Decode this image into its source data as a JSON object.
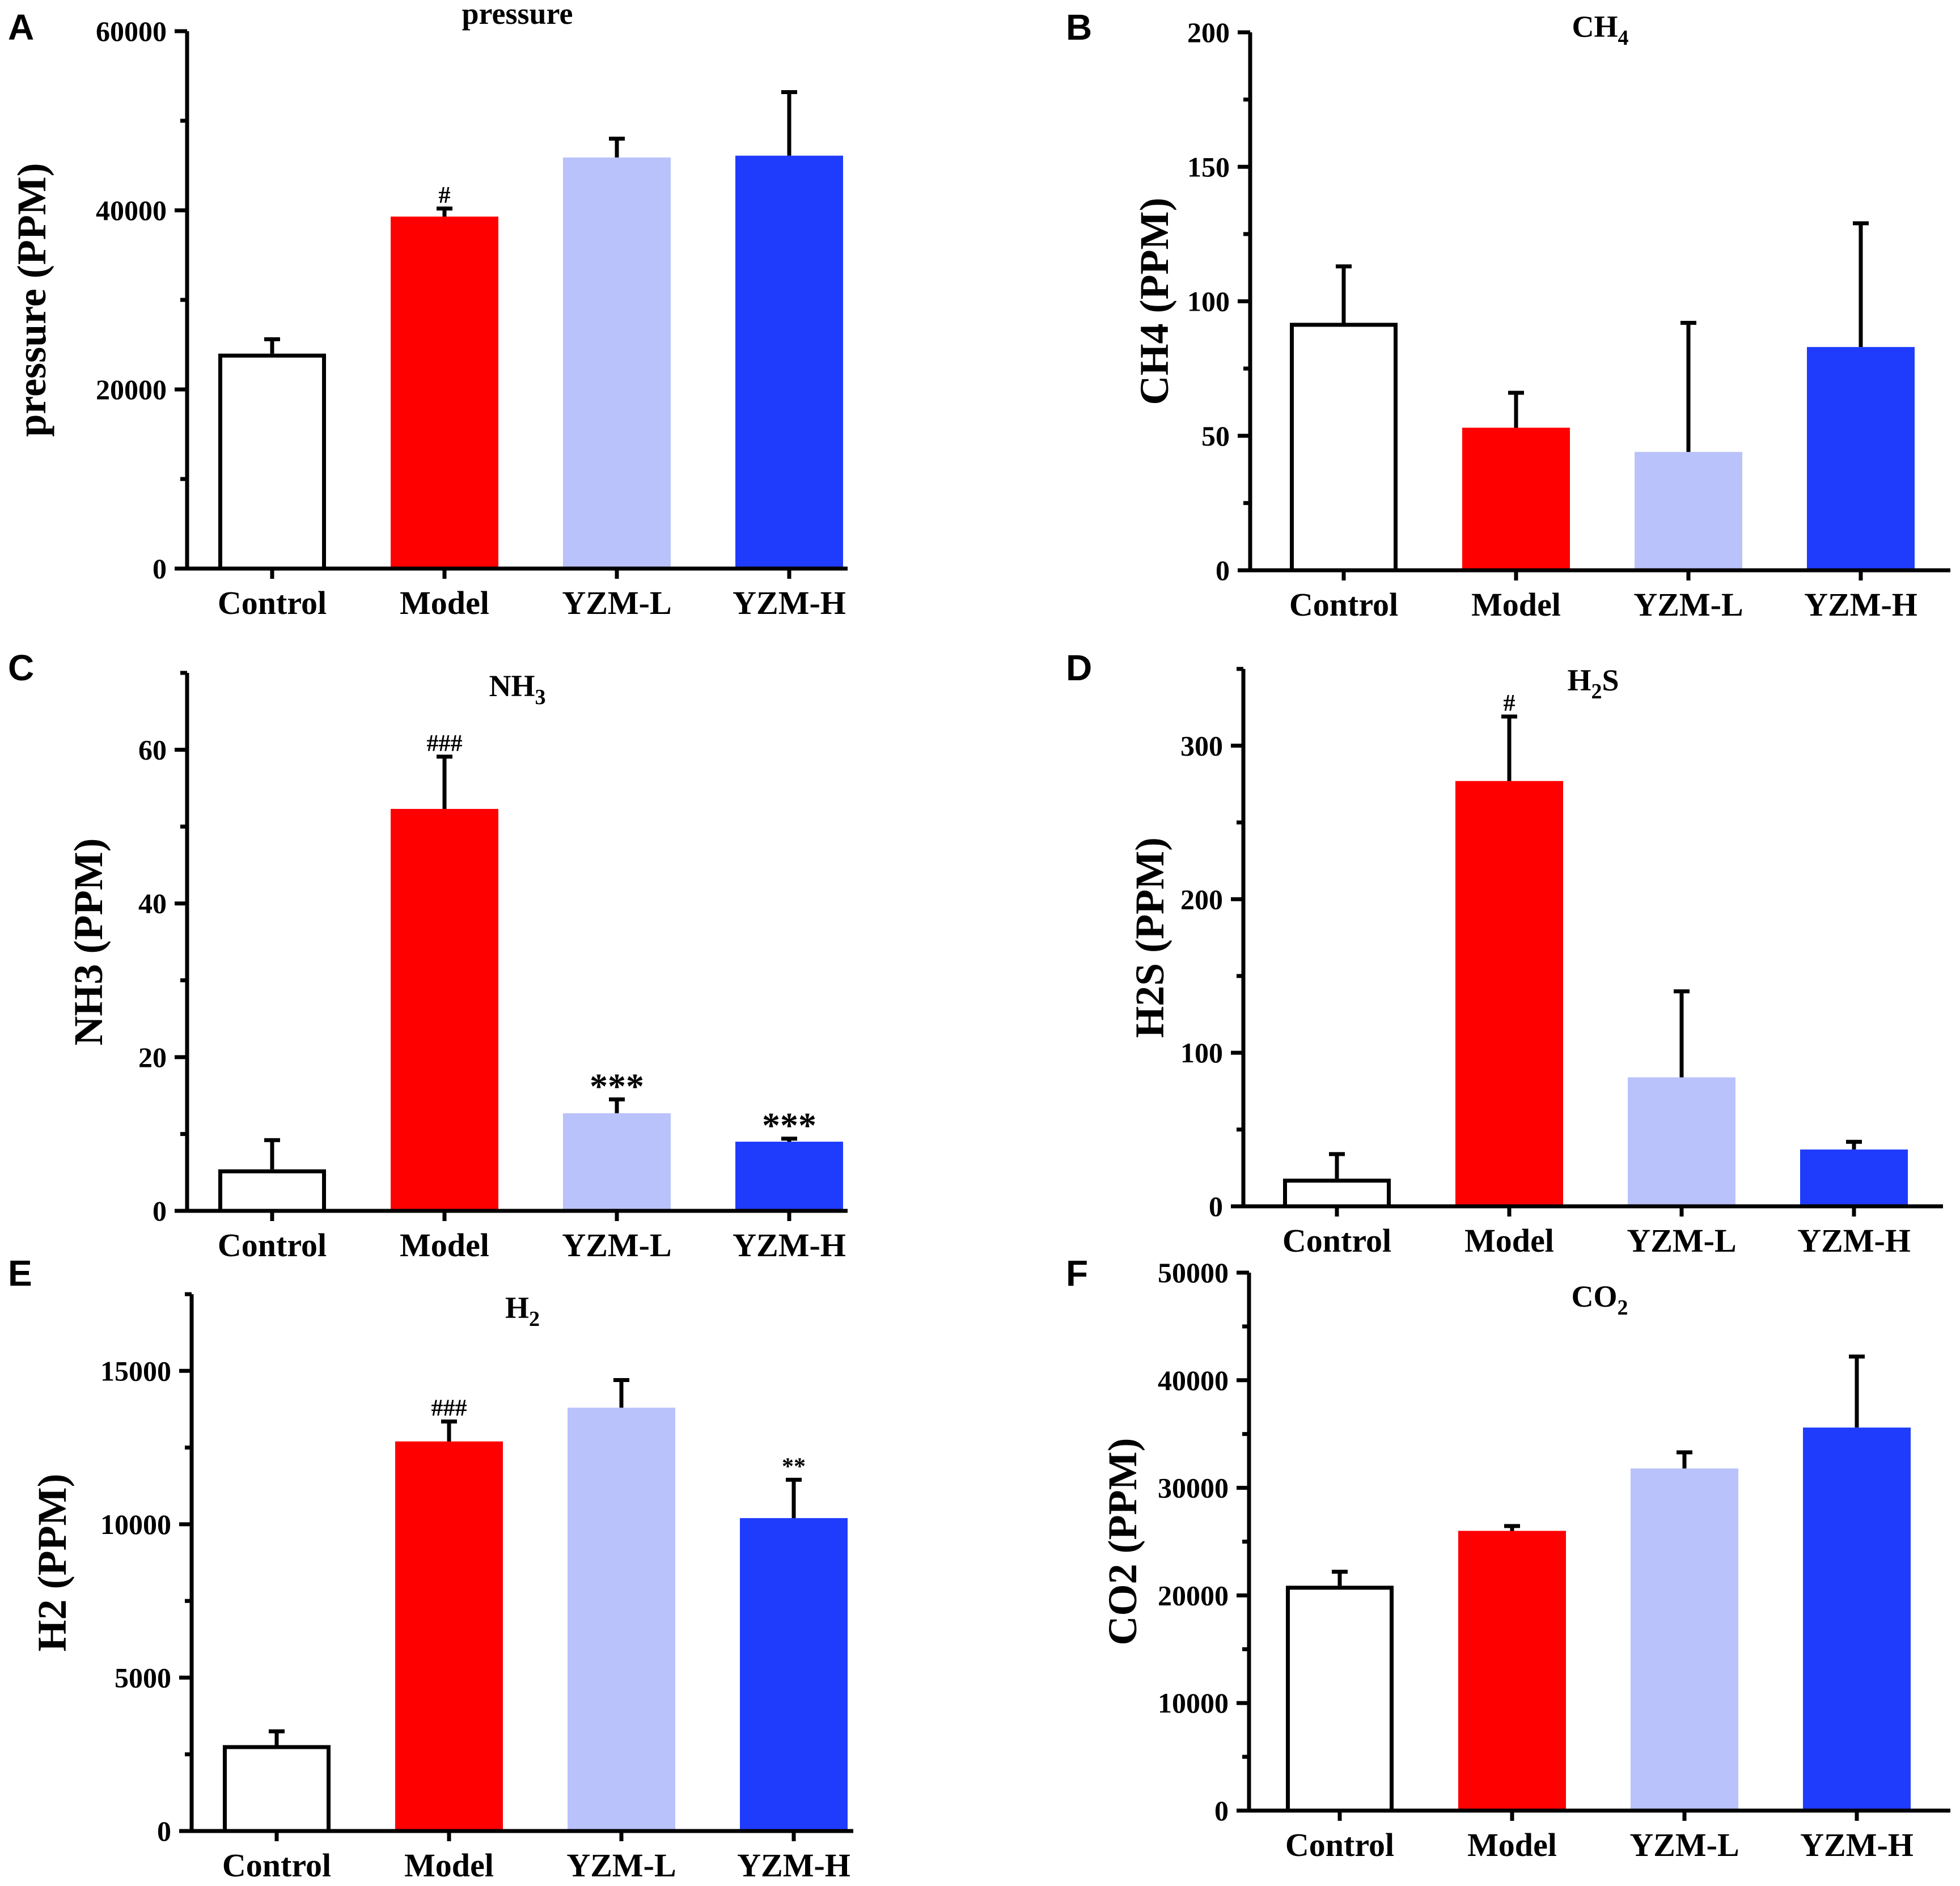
{
  "figure": {
    "panel_letters": [
      "A",
      "B",
      "C",
      "D",
      "E",
      "F"
    ]
  },
  "colors": {
    "control_fill": "#ffffff",
    "model_fill": "#fe0000",
    "yzm_l_fill": "#b9c2fb",
    "yzm_h_fill": "#1f3cfd",
    "axis": "#000000"
  },
  "chart_data": [
    {
      "panel": "A",
      "type": "bar",
      "title": "pressure",
      "title_sub": "",
      "ylabel": "pressure (PPM)",
      "categories": [
        "Control",
        "Model",
        "YZM-L",
        "YZM-H"
      ],
      "values": [
        24000,
        39300,
        45900,
        46100
      ],
      "errors": [
        1600,
        900,
        2100,
        7100
      ],
      "annotations": [
        "",
        "#",
        "",
        ""
      ],
      "annotation_sizes": [
        "",
        "small",
        "",
        ""
      ],
      "ylim": [
        0,
        60000
      ],
      "yticks": [
        0,
        20000,
        40000,
        60000
      ],
      "yticks_minor": [
        10000,
        30000,
        50000
      ]
    },
    {
      "panel": "B",
      "type": "bar",
      "title": "CH",
      "title_sub": "4",
      "ylabel": "CH4 (PPM)",
      "categories": [
        "Control",
        "Model",
        "YZM-L",
        "YZM-H"
      ],
      "values": [
        92,
        53,
        44,
        83
      ],
      "errors": [
        21,
        13,
        48,
        46
      ],
      "annotations": [
        "",
        "",
        "",
        ""
      ],
      "annotation_sizes": [
        "",
        "",
        "",
        ""
      ],
      "ylim": [
        0,
        200
      ],
      "yticks": [
        0,
        50,
        100,
        150,
        200
      ],
      "yticks_minor": [
        25,
        75,
        125,
        175
      ]
    },
    {
      "panel": "C",
      "type": "bar",
      "title": "NH",
      "title_sub": "3",
      "ylabel": "NH3 (PPM)",
      "categories": [
        "Control",
        "Model",
        "YZM-L",
        "YZM-H"
      ],
      "values": [
        5.4,
        52.3,
        12.7,
        9.0
      ],
      "errors": [
        3.8,
        6.8,
        1.8,
        0.4
      ],
      "annotations": [
        "",
        "###",
        "***",
        "***"
      ],
      "annotation_sizes": [
        "",
        "small",
        "large",
        "large"
      ],
      "ylim": [
        0,
        70
      ],
      "yticks": [
        0,
        20,
        40,
        60
      ],
      "yticks_minor": [
        10,
        30,
        50,
        70
      ]
    },
    {
      "panel": "D",
      "type": "bar",
      "title": "H",
      "title_sub": "2",
      "title_after": "S",
      "ylabel": "H2S (PPM)",
      "categories": [
        "Control",
        "Model",
        "YZM-L",
        "YZM-H"
      ],
      "values": [
        18,
        277,
        84,
        37
      ],
      "errors": [
        16,
        42,
        56,
        5
      ],
      "annotations": [
        "",
        "#",
        "",
        ""
      ],
      "annotation_sizes": [
        "",
        "small",
        "",
        ""
      ],
      "ylim": [
        0,
        350
      ],
      "yticks": [
        0,
        100,
        200,
        300
      ],
      "yticks_minor": [
        50,
        150,
        250,
        350
      ]
    },
    {
      "panel": "E",
      "type": "bar",
      "title": "H",
      "title_sub": "2",
      "ylabel": "H2 (PPM)",
      "categories": [
        "Control",
        "Model",
        "YZM-L",
        "YZM-H"
      ],
      "values": [
        2800,
        12700,
        13800,
        10200
      ],
      "errors": [
        450,
        650,
        900,
        1250
      ],
      "annotations": [
        "",
        "###",
        "",
        "**"
      ],
      "annotation_sizes": [
        "",
        "small",
        "",
        "small"
      ],
      "ylim": [
        0,
        17500
      ],
      "yticks": [
        0,
        5000,
        10000,
        15000
      ],
      "yticks_minor": [
        2500,
        7500,
        12500,
        17500
      ]
    },
    {
      "panel": "F",
      "type": "bar",
      "title": "CO",
      "title_sub": "2",
      "ylabel": "CO2 (PPM)",
      "categories": [
        "Control",
        "Model",
        "YZM-L",
        "YZM-H"
      ],
      "values": [
        20900,
        26000,
        31800,
        35600
      ],
      "errors": [
        1300,
        450,
        1500,
        6600
      ],
      "annotations": [
        "",
        "",
        "",
        ""
      ],
      "annotation_sizes": [
        "",
        "",
        "",
        ""
      ],
      "ylim": [
        0,
        50000
      ],
      "yticks": [
        0,
        10000,
        20000,
        30000,
        40000,
        50000
      ],
      "yticks_minor": [
        5000,
        15000,
        25000,
        35000,
        45000
      ]
    }
  ]
}
